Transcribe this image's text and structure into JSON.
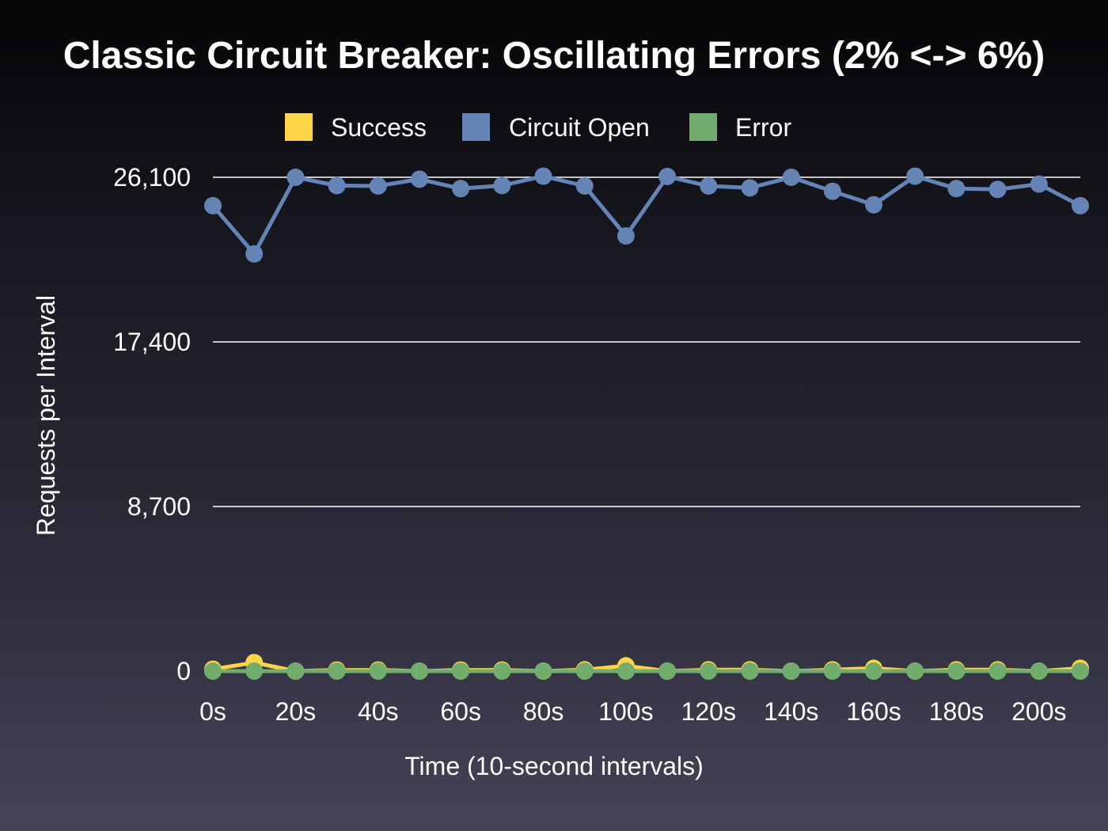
{
  "chart_data": {
    "type": "line",
    "title": "Classic Circuit Breaker: Oscillating Errors (2% <-> 6%)",
    "xlabel": "Time (10-second intervals)",
    "ylabel": "Requests per Interval",
    "x": [
      0,
      10,
      20,
      30,
      40,
      50,
      60,
      70,
      80,
      90,
      100,
      110,
      120,
      130,
      140,
      150,
      160,
      170,
      180,
      190,
      200,
      210
    ],
    "x_tick_labels": [
      "0s",
      "20s",
      "40s",
      "60s",
      "80s",
      "100s",
      "120s",
      "140s",
      "160s",
      "180s",
      "200s"
    ],
    "x_tick_values": [
      0,
      20,
      40,
      60,
      80,
      100,
      120,
      140,
      160,
      180,
      200
    ],
    "xlim": [
      0,
      210
    ],
    "y_tick_labels": [
      "0",
      "8,700",
      "17,400",
      "26,100"
    ],
    "y_tick_values": [
      0,
      8700,
      17400,
      26100
    ],
    "ylim": [
      0,
      26100
    ],
    "grid": true,
    "legend_position": "top-center",
    "series": [
      {
        "name": "Success",
        "color": "#fdd446",
        "values": [
          100,
          450,
          0,
          60,
          60,
          0,
          60,
          60,
          0,
          70,
          280,
          0,
          70,
          70,
          0,
          70,
          150,
          0,
          70,
          70,
          0,
          150
        ]
      },
      {
        "name": "Circuit Open",
        "color": "#6584b6",
        "values": [
          24600,
          22050,
          26100,
          25660,
          25640,
          26000,
          25500,
          25660,
          26160,
          25640,
          23000,
          26140,
          25640,
          25540,
          26100,
          25360,
          24650,
          26160,
          25500,
          25460,
          25740,
          24600
        ]
      },
      {
        "name": "Error",
        "color": "#71ad6c",
        "values": [
          0,
          0,
          0,
          0,
          0,
          0,
          0,
          0,
          0,
          0,
          0,
          0,
          0,
          0,
          0,
          0,
          0,
          0,
          0,
          0,
          0,
          0
        ]
      }
    ]
  }
}
